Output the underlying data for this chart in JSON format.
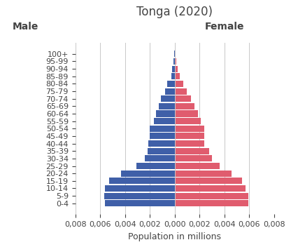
{
  "title": "Tonga (2020)",
  "xlabel": "Population in millions",
  "male_label": "Male",
  "female_label": "Female",
  "age_groups": [
    "0-4",
    "5-9",
    "10-14",
    "15-19",
    "20-24",
    "25-29",
    "30-34",
    "35-39",
    "40-44",
    "45-49",
    "50-54",
    "55-59",
    "60-64",
    "65-69",
    "70-74",
    "75-79",
    "80-84",
    "85-89",
    "90-94",
    "95-99",
    "100+"
  ],
  "male": [
    0.0056,
    0.00565,
    0.0056,
    0.0053,
    0.0043,
    0.0031,
    0.0024,
    0.0022,
    0.0021,
    0.002,
    0.002,
    0.0017,
    0.0015,
    0.0013,
    0.0011,
    0.0008,
    0.0006,
    0.00025,
    0.0002,
    0.0001,
    5e-05
  ],
  "female": [
    0.0059,
    0.0059,
    0.0057,
    0.0054,
    0.0046,
    0.0036,
    0.003,
    0.0028,
    0.0024,
    0.0024,
    0.0024,
    0.0021,
    0.0019,
    0.0016,
    0.0013,
    0.00095,
    0.0007,
    0.0004,
    0.00025,
    0.00015,
    8e-05
  ],
  "male_color": "#3f5fa8",
  "female_color": "#e05c6e",
  "xlim": 0.008,
  "bg_color": "#ffffff",
  "grid_color": "#c8c8c8",
  "title_fontsize": 12,
  "label_fontsize": 9,
  "tick_fontsize": 8,
  "bar_height": 0.85
}
